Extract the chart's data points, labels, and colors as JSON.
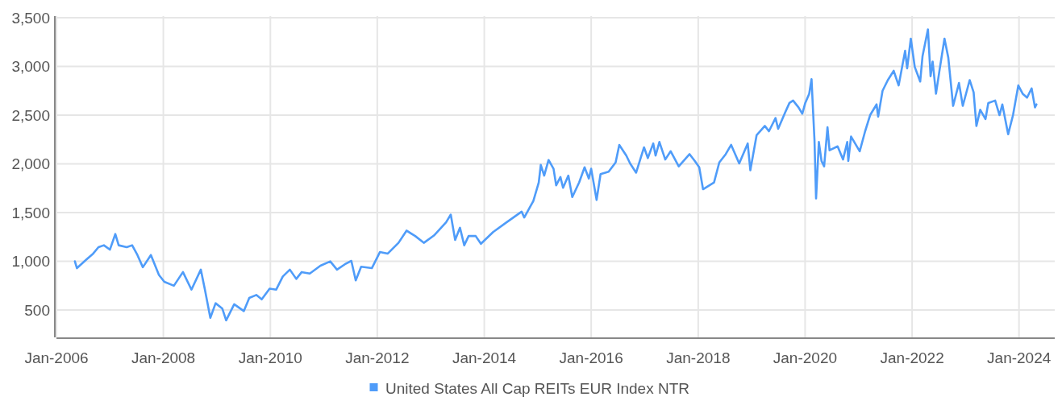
{
  "chart_data": {
    "type": "line",
    "xlim": [
      "2006-01-01",
      "2024-09-01"
    ],
    "ylim": [
      220,
      3500
    ],
    "xticks": [
      {
        "value": "2006-01-01",
        "label": "Jan-2006"
      },
      {
        "value": "2008-01-01",
        "label": "Jan-2008"
      },
      {
        "value": "2010-01-01",
        "label": "Jan-2010"
      },
      {
        "value": "2012-01-01",
        "label": "Jan-2012"
      },
      {
        "value": "2014-01-01",
        "label": "Jan-2014"
      },
      {
        "value": "2016-01-01",
        "label": "Jan-2016"
      },
      {
        "value": "2018-01-01",
        "label": "Jan-2018"
      },
      {
        "value": "2020-01-01",
        "label": "Jan-2020"
      },
      {
        "value": "2022-01-01",
        "label": "Jan-2022"
      },
      {
        "value": "2024-01-01",
        "label": "Jan-2024"
      }
    ],
    "yticks": [
      {
        "value": 500,
        "label": "500"
      },
      {
        "value": 1000,
        "label": "1,000"
      },
      {
        "value": 1500,
        "label": "1,500"
      },
      {
        "value": 2000,
        "label": "2,000"
      },
      {
        "value": 2500,
        "label": "2,500"
      },
      {
        "value": 3000,
        "label": "3,000"
      },
      {
        "value": 3500,
        "label": "3,500"
      }
    ],
    "grid": true,
    "legend": "bottom",
    "marker": "none",
    "line_style": "solid",
    "x": [
      "2006-05-07",
      "2006-05-21",
      "2006-07-22",
      "2006-09-09",
      "2006-10-15",
      "2006-11-21",
      "2007-01-01",
      "2007-02-07",
      "2007-03-02",
      "2007-04-26",
      "2007-06-02",
      "2007-07-08",
      "2007-08-14",
      "2007-10-08",
      "2007-12-02",
      "2008-01-08",
      "2008-03-13",
      "2008-05-14",
      "2008-07-11",
      "2008-09-13",
      "2008-10-11",
      "2008-11-17",
      "2008-12-23",
      "2009-02-07",
      "2009-03-05",
      "2009-04-29",
      "2009-07-04",
      "2009-08-10",
      "2009-09-27",
      "2009-11-03",
      "2009-12-27",
      "2010-02-10",
      "2010-03-27",
      "2010-05-14",
      "2010-06-27",
      "2010-08-03",
      "2010-09-27",
      "2010-12-09",
      "2011-02-14",
      "2011-04-01",
      "2011-05-25",
      "2011-07-08",
      "2011-08-07",
      "2011-09-13",
      "2011-11-25",
      "2012-01-19",
      "2012-03-13",
      "2012-05-25",
      "2012-07-19",
      "2012-09-16",
      "2012-11-14",
      "2013-01-22",
      "2013-04-15",
      "2013-05-17",
      "2013-06-16",
      "2013-07-19",
      "2013-08-17",
      "2013-09-16",
      "2013-11-03",
      "2013-12-09",
      "2014-03-02",
      "2014-06-02",
      "2014-09-13",
      "2014-10-01",
      "2014-12-02",
      "2015-01-08",
      "2015-01-22",
      "2015-02-14",
      "2015-03-16",
      "2015-04-19",
      "2015-05-07",
      "2015-06-05",
      "2015-06-23",
      "2015-07-29",
      "2015-08-25",
      "2015-10-11",
      "2015-11-17",
      "2015-12-16",
      "2016-01-01",
      "2016-02-07",
      "2016-03-05",
      "2016-04-29",
      "2016-06-16",
      "2016-07-11",
      "2016-08-28",
      "2016-09-23",
      "2016-11-03",
      "2016-12-27",
      "2017-01-22",
      "2017-02-28",
      "2017-03-16",
      "2017-04-11",
      "2017-05-21",
      "2017-06-27",
      "2017-08-21",
      "2017-11-03",
      "2017-12-09",
      "2018-01-08",
      "2018-02-03",
      "2018-04-19",
      "2018-05-25",
      "2018-07-08",
      "2018-08-14",
      "2018-10-08",
      "2018-12-05",
      "2018-12-23",
      "2019-02-04",
      "2019-04-01",
      "2019-04-29",
      "2019-06-13",
      "2019-07-01",
      "2019-08-17",
      "2019-09-16",
      "2019-10-11",
      "2019-11-17",
      "2019-12-13",
      "2020-01-02",
      "2020-01-29",
      "2020-02-14",
      "2020-02-25",
      "2020-03-05",
      "2020-03-16",
      "2020-04-04",
      "2020-04-22",
      "2020-05-10",
      "2020-06-02",
      "2020-06-16",
      "2020-08-10",
      "2020-09-16",
      "2020-10-15",
      "2020-10-22",
      "2020-11-10",
      "2021-01-08",
      "2021-02-14",
      "2021-03-20",
      "2021-05-03",
      "2021-05-14",
      "2021-06-13",
      "2021-07-19",
      "2021-08-28",
      "2021-10-01",
      "2021-11-14",
      "2021-11-28",
      "2021-12-23",
      "2022-01-19",
      "2022-02-25",
      "2022-03-13",
      "2022-04-19",
      "2022-05-07",
      "2022-05-21",
      "2022-06-13",
      "2022-07-08",
      "2022-08-10",
      "2022-09-05",
      "2022-10-08",
      "2022-11-17",
      "2022-12-13",
      "2023-01-29",
      "2023-02-25",
      "2023-03-16",
      "2023-04-11",
      "2023-05-17",
      "2023-06-05",
      "2023-07-22",
      "2023-08-21",
      "2023-09-09",
      "2023-10-19",
      "2023-11-21",
      "2023-12-27",
      "2024-01-26",
      "2024-02-25",
      "2024-03-27",
      "2024-04-19",
      "2024-04-29"
    ],
    "series": [
      {
        "name": "United States All Cap REITs EUR Index NTR",
        "color": "#4f9cf9",
        "values": [
          1000,
          930,
          1015,
          1080,
          1145,
          1165,
          1120,
          1280,
          1165,
          1145,
          1165,
          1065,
          940,
          1065,
          860,
          790,
          750,
          890,
          710,
          915,
          710,
          420,
          570,
          515,
          395,
          560,
          490,
          625,
          655,
          610,
          720,
          710,
          845,
          915,
          820,
          890,
          875,
          955,
          1000,
          915,
          970,
          1005,
          805,
          945,
          930,
          1095,
          1080,
          1190,
          1315,
          1260,
          1190,
          1265,
          1400,
          1480,
          1220,
          1345,
          1165,
          1260,
          1260,
          1180,
          1300,
          1400,
          1510,
          1450,
          1620,
          1810,
          1990,
          1880,
          2040,
          1950,
          1780,
          1865,
          1755,
          1880,
          1660,
          1810,
          1965,
          1850,
          1950,
          1630,
          1895,
          1920,
          2015,
          2195,
          2085,
          2005,
          1910,
          2170,
          2060,
          2210,
          2085,
          2225,
          2045,
          2130,
          1975,
          2100,
          2030,
          1965,
          1740,
          1810,
          2015,
          2100,
          2195,
          2005,
          2210,
          1935,
          2295,
          2390,
          2335,
          2470,
          2360,
          2525,
          2625,
          2650,
          2580,
          2515,
          2625,
          2720,
          2870,
          2525,
          2250,
          1645,
          2225,
          2030,
          1975,
          2375,
          2140,
          2180,
          2045,
          2225,
          2030,
          2280,
          2130,
          2335,
          2500,
          2610,
          2485,
          2750,
          2860,
          2955,
          2805,
          3160,
          2980,
          3285,
          2995,
          2845,
          3105,
          3380,
          2900,
          3050,
          2720,
          2970,
          3285,
          3090,
          2595,
          2830,
          2595,
          2860,
          2735,
          2390,
          2555,
          2460,
          2625,
          2650,
          2500,
          2610,
          2305,
          2500,
          2805,
          2720,
          2680,
          2775,
          2580,
          2610
        ]
      }
    ]
  }
}
